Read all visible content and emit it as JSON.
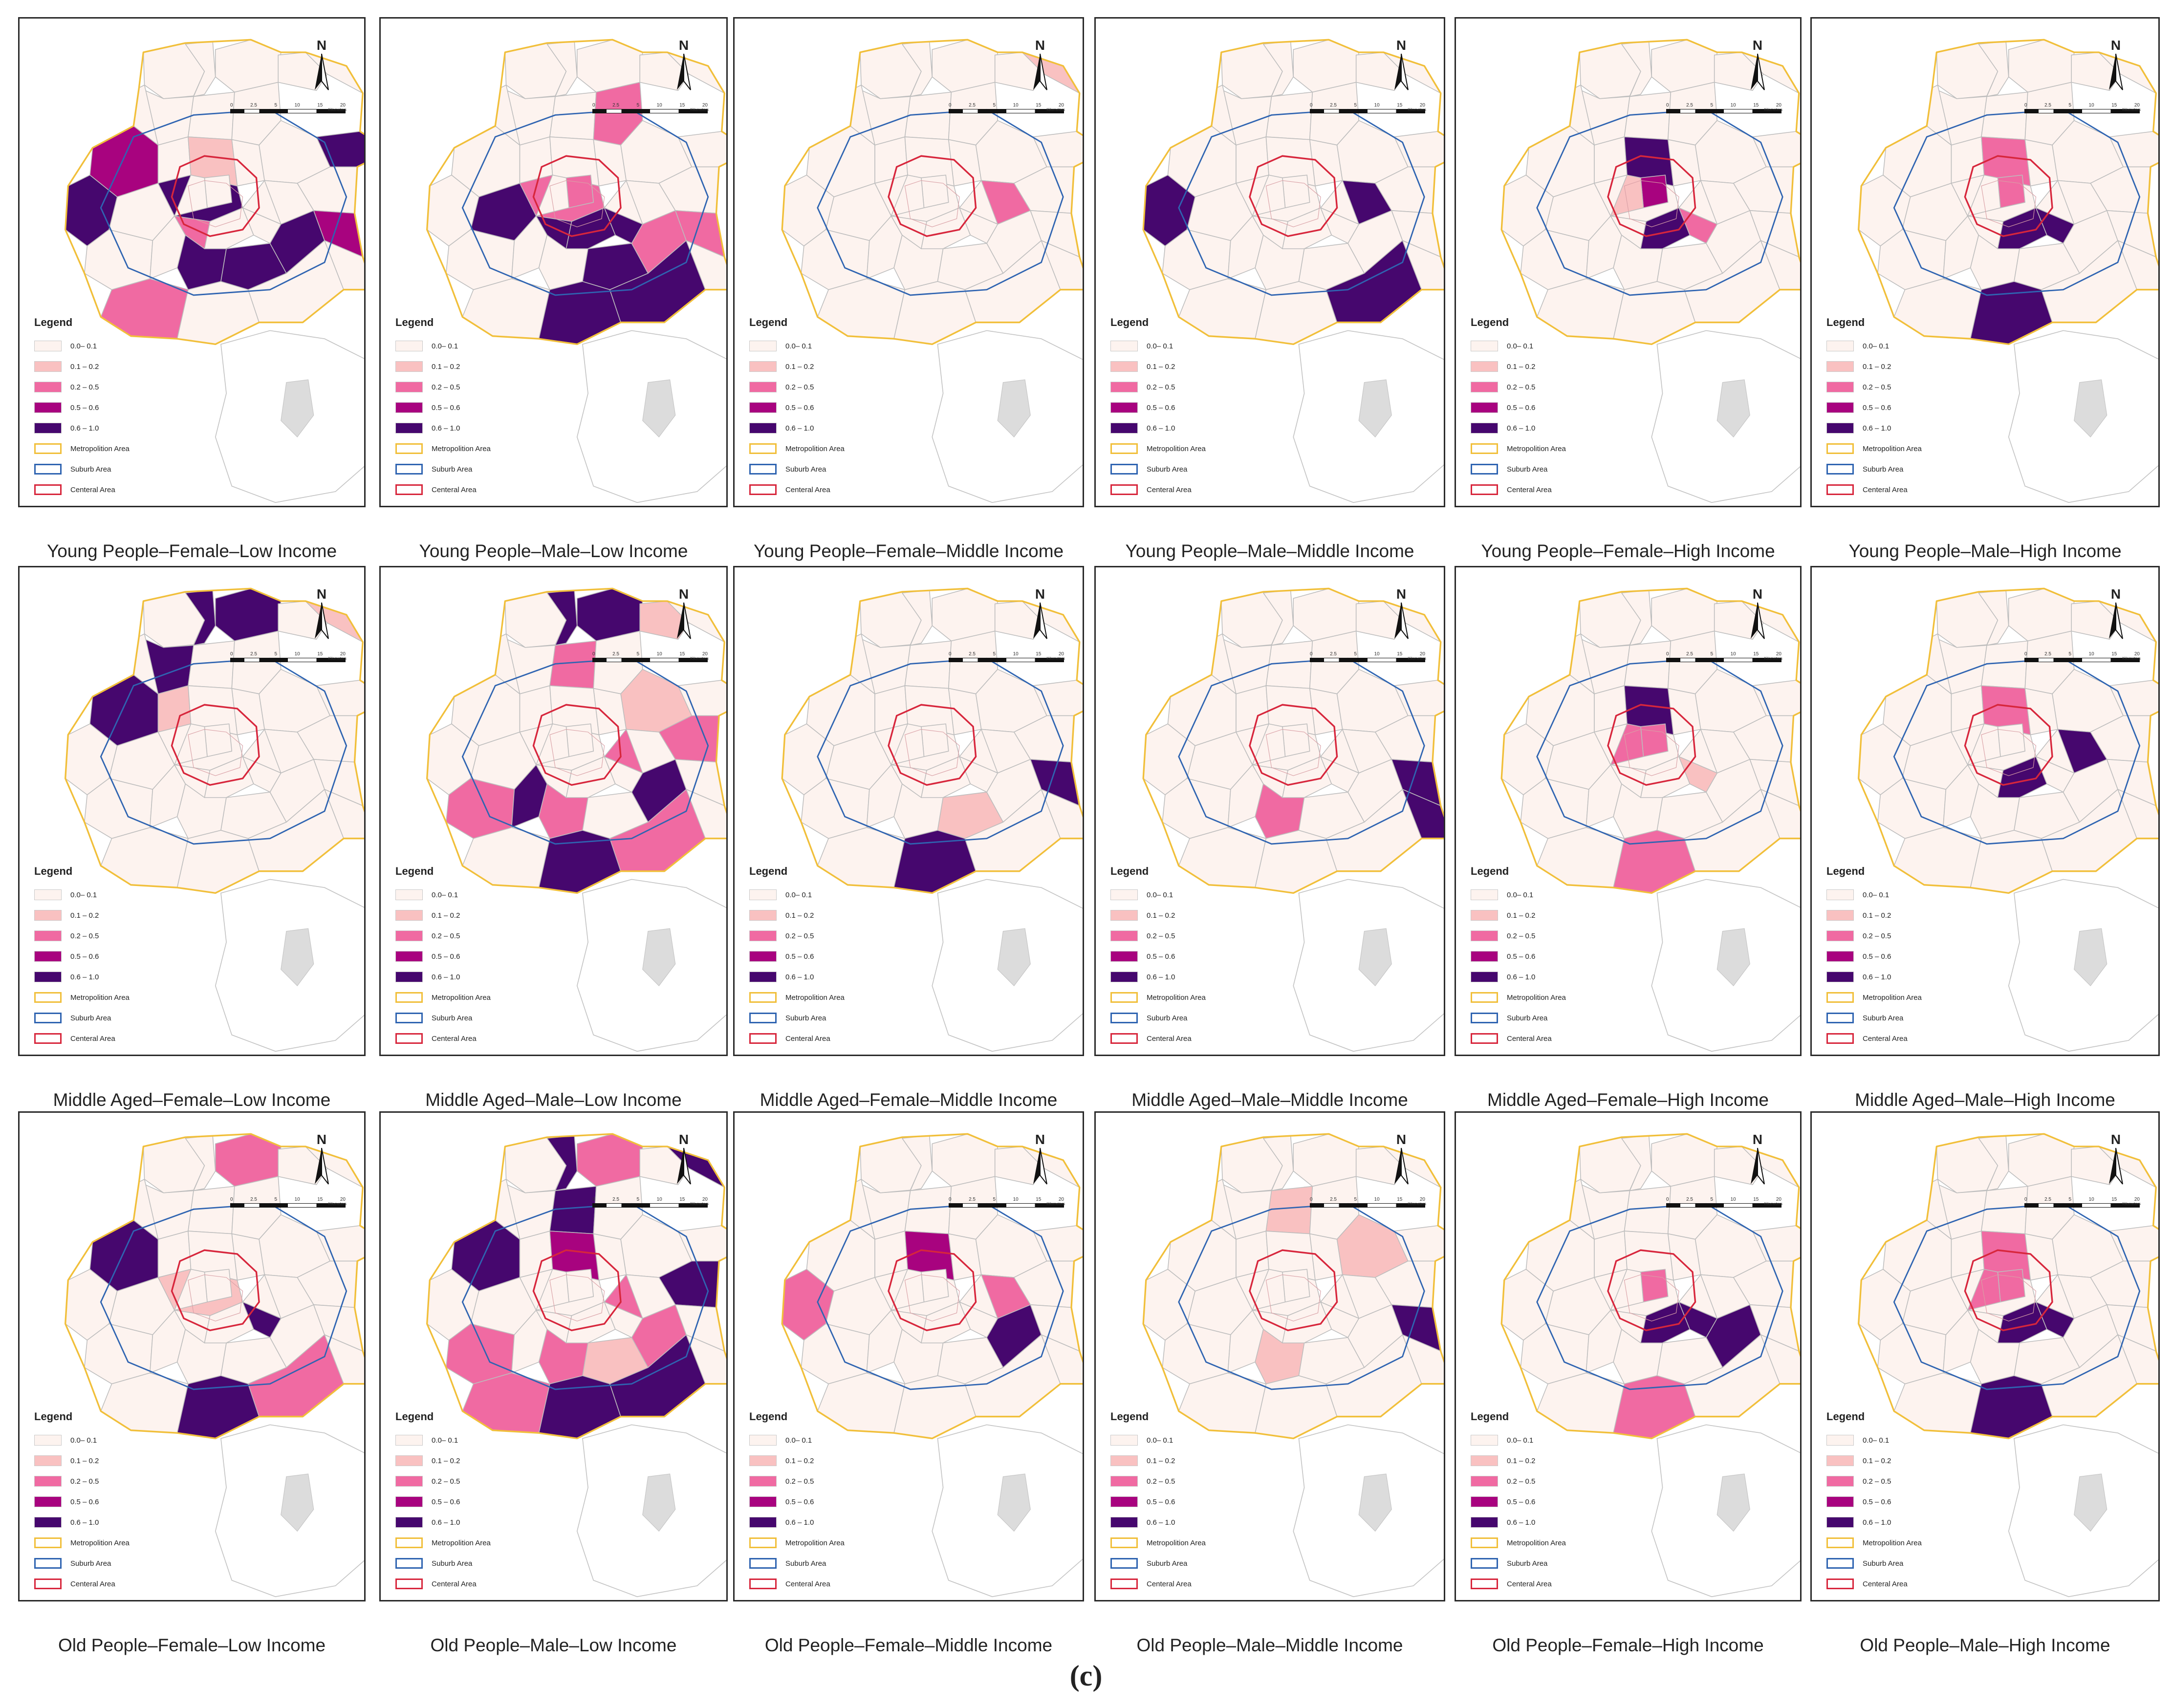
{
  "figure_label": "(c)",
  "legend": {
    "title": "Legend",
    "classes": [
      {
        "label": "0.0– 0.1",
        "color": "#fdf3ef"
      },
      {
        "label": "0.1 – 0.2",
        "color": "#f9c1c1"
      },
      {
        "label": "0.2 – 0.5",
        "color": "#f06aa2"
      },
      {
        "label": "0.5 – 0.6",
        "color": "#a8037f"
      },
      {
        "label": "0.6 – 1.0",
        "color": "#46076e"
      }
    ],
    "boundaries": [
      {
        "label": "Metropolition Area",
        "color": "#f1bf3a"
      },
      {
        "label": "Suburb Area",
        "color": "#2f64b1"
      },
      {
        "label": "Centeral Area",
        "color": "#d7263c"
      }
    ]
  },
  "north_arrow": {
    "letter": "N"
  },
  "scale_bar": {
    "ticks": [
      "0",
      "2.5",
      "5",
      "10",
      "15",
      "20"
    ],
    "unit": "Kilometers"
  },
  "colors": {
    "boundary_grey": "#c4c4c4",
    "water": "#dcdcdc",
    "frame": "#2a2a2a"
  },
  "panels": [
    {
      "title": "Young People–Female–Low Income",
      "hot": [
        [
          14,
          4
        ],
        [
          20,
          4
        ],
        [
          7,
          3
        ],
        [
          11,
          4
        ],
        [
          12,
          4
        ],
        [
          23,
          2
        ],
        [
          19,
          4
        ],
        [
          21,
          4
        ],
        [
          22,
          3
        ],
        [
          27,
          2
        ],
        [
          26,
          1
        ]
      ]
    },
    {
      "title": "Young People–Male–Low Income",
      "hot": [
        [
          14,
          2
        ],
        [
          20,
          4
        ],
        [
          6,
          2
        ],
        [
          13,
          4
        ],
        [
          27,
          4
        ],
        [
          28,
          4
        ],
        [
          30,
          2
        ],
        [
          22,
          2
        ],
        [
          21,
          2
        ],
        [
          24,
          4
        ],
        [
          25,
          4
        ],
        [
          29,
          4
        ]
      ]
    },
    {
      "title": "Young People–Female–Middle Income",
      "hot": [
        [
          31,
          2
        ],
        [
          33,
          1
        ]
      ]
    },
    {
      "title": "Young People–Male–Middle Income",
      "hot": [
        [
          25,
          4
        ],
        [
          31,
          4
        ],
        [
          12,
          4
        ]
      ]
    },
    {
      "title": "Young People–Female–High Income",
      "hot": [
        [
          28,
          4
        ],
        [
          30,
          3
        ],
        [
          29,
          2
        ],
        [
          35,
          1
        ],
        [
          26,
          4
        ]
      ]
    },
    {
      "title": "Young People–Male–High Income",
      "hot": [
        [
          28,
          4
        ],
        [
          29,
          4
        ],
        [
          30,
          2
        ],
        [
          26,
          2
        ],
        [
          24,
          4
        ]
      ]
    },
    {
      "title": "Middle Aged–Female–Low Income",
      "hot": [
        [
          1,
          4
        ],
        [
          2,
          4
        ],
        [
          4,
          4
        ],
        [
          7,
          4
        ],
        [
          8,
          1
        ],
        [
          33,
          1
        ]
      ]
    },
    {
      "title": "Middle Aged–Male–Low Income",
      "hot": [
        [
          1,
          4
        ],
        [
          2,
          4
        ],
        [
          3,
          1
        ],
        [
          5,
          2
        ],
        [
          10,
          1
        ],
        [
          15,
          2
        ],
        [
          16,
          2
        ],
        [
          17,
          2
        ],
        [
          18,
          4
        ],
        [
          19,
          2
        ],
        [
          21,
          4
        ],
        [
          24,
          4
        ],
        [
          25,
          2
        ]
      ]
    },
    {
      "title": "Middle Aged–Female–Middle Income",
      "hot": [
        [
          22,
          4
        ],
        [
          24,
          4
        ],
        [
          20,
          1
        ]
      ]
    },
    {
      "title": "Middle Aged–Male–Middle Income",
      "hot": [
        [
          22,
          4
        ],
        [
          19,
          2
        ],
        [
          34,
          4
        ]
      ]
    },
    {
      "title": "Middle Aged–Female–High Income",
      "hot": [
        [
          29,
          1
        ],
        [
          30,
          2
        ],
        [
          35,
          2
        ],
        [
          26,
          4
        ],
        [
          24,
          2
        ]
      ]
    },
    {
      "title": "Middle Aged–Male–High Income",
      "hot": [
        [
          28,
          4
        ],
        [
          31,
          4
        ],
        [
          26,
          2
        ]
      ]
    },
    {
      "title": "Old People–Female–Low Income",
      "hot": [
        [
          2,
          2
        ],
        [
          7,
          4
        ],
        [
          14,
          1
        ],
        [
          29,
          4
        ],
        [
          24,
          4
        ],
        [
          25,
          2
        ]
      ]
    },
    {
      "title": "Old People–Male–Low Income",
      "hot": [
        [
          1,
          4
        ],
        [
          2,
          2
        ],
        [
          5,
          4
        ],
        [
          7,
          4
        ],
        [
          15,
          2
        ],
        [
          16,
          4
        ],
        [
          17,
          2
        ],
        [
          19,
          2
        ],
        [
          20,
          1
        ],
        [
          21,
          2
        ],
        [
          23,
          2
        ],
        [
          24,
          4
        ],
        [
          25,
          4
        ],
        [
          26,
          3
        ],
        [
          33,
          4
        ]
      ]
    },
    {
      "title": "Old People–Female–Middle Income",
      "hot": [
        [
          31,
          2
        ],
        [
          21,
          4
        ],
        [
          12,
          2
        ],
        [
          26,
          3
        ]
      ]
    },
    {
      "title": "Old People–Male–Middle Income",
      "hot": [
        [
          22,
          4
        ],
        [
          19,
          1
        ],
        [
          5,
          1
        ],
        [
          10,
          1
        ]
      ]
    },
    {
      "title": "Old People–Female–High Income",
      "hot": [
        [
          28,
          4
        ],
        [
          29,
          4
        ],
        [
          30,
          2
        ],
        [
          21,
          4
        ],
        [
          24,
          2
        ]
      ]
    },
    {
      "title": "Old People–Male–High Income",
      "hot": [
        [
          28,
          4
        ],
        [
          29,
          4
        ],
        [
          30,
          2
        ],
        [
          26,
          2
        ],
        [
          24,
          4
        ],
        [
          35,
          2
        ]
      ]
    }
  ]
}
